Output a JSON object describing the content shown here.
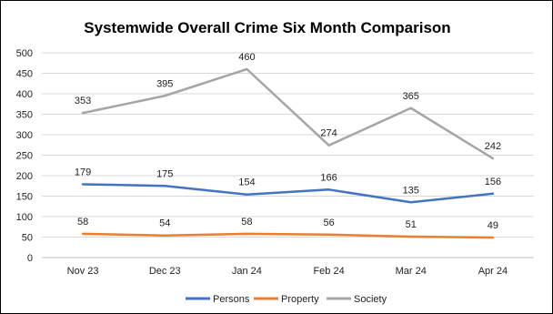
{
  "chart_data": {
    "type": "line",
    "title": "Systemwide Overall Crime Six Month Comparison",
    "categories": [
      "Nov 23",
      "Dec 23",
      "Jan 24",
      "Feb 24",
      "Mar 24",
      "Apr 24"
    ],
    "series": [
      {
        "name": "Persons",
        "values": [
          179,
          175,
          154,
          166,
          135,
          156
        ],
        "color": "#4472c4"
      },
      {
        "name": "Property",
        "values": [
          58,
          54,
          58,
          56,
          51,
          49
        ],
        "color": "#ed7d31"
      },
      {
        "name": "Society",
        "values": [
          353,
          395,
          460,
          274,
          365,
          242
        ],
        "color": "#a5a5a5"
      }
    ],
    "ylim": [
      0,
      500
    ],
    "yticks": [
      0,
      50,
      100,
      150,
      200,
      250,
      300,
      350,
      400,
      450,
      500
    ],
    "grid": true,
    "legend": "bottom",
    "data_labels": true
  }
}
